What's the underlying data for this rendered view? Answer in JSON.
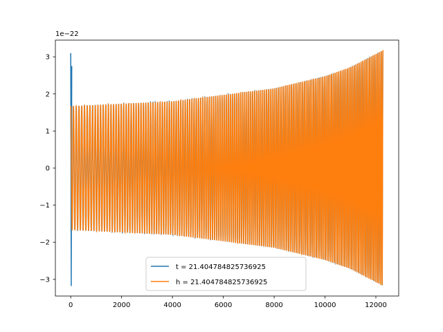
{
  "chart_data": {
    "type": "line",
    "title": "",
    "xlabel": "",
    "ylabel": "",
    "xlim": [
      -604,
      12898
    ],
    "ylim": [
      -3.45,
      3.45
    ],
    "y_scale_label": "1e−22",
    "x_ticks": [
      0,
      2000,
      4000,
      6000,
      8000,
      10000,
      12000
    ],
    "x_tick_labels": [
      "0",
      "2000",
      "4000",
      "6000",
      "8000",
      "10000",
      "12000"
    ],
    "y_ticks": [
      -3,
      -2,
      -1,
      0,
      1,
      2,
      3
    ],
    "y_tick_labels": [
      "−3",
      "−2",
      "−1",
      "0",
      "1",
      "2",
      "3"
    ],
    "grid": false,
    "legend_position": "lower-center",
    "series": [
      {
        "name": "t = 21.404784825736925",
        "color": "#1f77b4",
        "x_range": [
          0,
          12280
        ],
        "initial_spike": {
          "x": [
            0,
            20,
            40
          ],
          "y": [
            3.1,
            -3.18,
            2.75
          ]
        },
        "envelope": {
          "x": [
            0,
            4000,
            8000,
            10000,
            11000,
            12280
          ],
          "amplitude": [
            1.67,
            1.8,
            2.15,
            2.48,
            2.72,
            3.18
          ]
        },
        "cycles": 150
      },
      {
        "name": "h = 21.404784825736925",
        "color": "#ff7f0e",
        "x_range": [
          0,
          12280
        ],
        "envelope": {
          "x": [
            0,
            4000,
            8000,
            10000,
            11000,
            12280
          ],
          "amplitude": [
            1.67,
            1.8,
            2.15,
            2.48,
            2.72,
            3.18
          ]
        },
        "cycles": 150
      }
    ]
  }
}
